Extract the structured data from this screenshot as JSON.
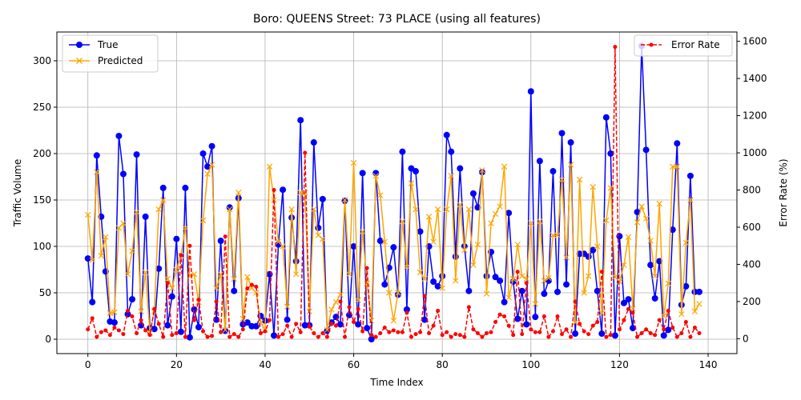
{
  "chart_data": {
    "type": "line",
    "title": "Boro: QUEENS Street: 73 PLACE (using all features)",
    "xlabel": "Time Index",
    "ylabel": "Traffic Volume",
    "y2label": "Error Rate (%)",
    "xlim": [
      -7,
      146.5
    ],
    "ylim": [
      -15.5,
      331
    ],
    "y2lim": [
      -80,
      1650
    ],
    "xticks": [
      0,
      20,
      40,
      60,
      80,
      100,
      120,
      140
    ],
    "yticks": [
      0,
      50,
      100,
      150,
      200,
      250,
      300
    ],
    "y2ticks": [
      0,
      200,
      400,
      600,
      800,
      1000,
      1200,
      1400,
      1600
    ],
    "grid": true,
    "legend_left": {
      "placement": "upper-left",
      "entries": [
        "True",
        "Predicted"
      ]
    },
    "legend_right": {
      "placement": "upper-right",
      "entries": [
        "Error Rate"
      ]
    },
    "colors": {
      "true": "#0000ff",
      "predicted": "#ffa500",
      "error": "#ff0000"
    },
    "series": [
      {
        "name": "True",
        "axis": "left",
        "values": [
          87,
          40,
          198,
          132,
          73,
          19,
          18,
          219,
          178,
          27,
          43,
          199,
          15,
          132,
          12,
          11,
          76,
          163,
          15,
          46,
          108,
          8,
          163,
          2,
          32,
          13,
          200,
          186,
          208,
          21,
          106,
          9,
          142,
          52,
          152,
          16,
          18,
          14,
          14,
          25,
          20,
          70,
          4,
          102,
          161,
          21,
          131,
          84,
          236,
          15,
          15,
          212,
          120,
          151,
          9,
          18,
          24,
          16,
          149,
          26,
          100,
          16,
          179,
          12,
          0,
          179,
          106,
          59,
          77,
          99,
          48,
          202,
          32,
          184,
          181,
          116,
          21,
          100,
          62,
          57,
          68,
          220,
          202,
          89,
          184,
          100,
          52,
          157,
          142,
          180,
          68,
          94,
          67,
          63,
          40,
          136,
          62,
          22,
          52,
          16,
          267,
          24,
          192,
          49,
          63,
          181,
          51,
          222,
          59,
          212,
          6,
          92,
          92,
          89,
          96,
          52,
          6,
          239,
          200,
          4,
          111,
          39,
          43,
          12,
          137,
          316,
          204,
          80,
          44,
          84,
          4,
          10,
          118,
          211,
          37,
          57,
          176,
          51,
          51
        ]
      },
      {
        "name": "Predicted",
        "axis": "left",
        "values": [
          134,
          85,
          180,
          90,
          110,
          28,
          29,
          120,
          125,
          70,
          95,
          137,
          30,
          72,
          7,
          30,
          140,
          150,
          65,
          55,
          75,
          90,
          120,
          68,
          70,
          40,
          128,
          178,
          188,
          55,
          70,
          10,
          140,
          65,
          158,
          22,
          67,
          55,
          50,
          18,
          10,
          186,
          150,
          105,
          100,
          35,
          140,
          70,
          158,
          158,
          30,
          140,
          112,
          108,
          10,
          32,
          40,
          48,
          150,
          70,
          190,
          42,
          116,
          60,
          20,
          176,
          155,
          105,
          50,
          20,
          50,
          127,
          78,
          168,
          140,
          72,
          65,
          132,
          105,
          140,
          55,
          140,
          176,
          63,
          145,
          96,
          140,
          80,
          102,
          182,
          49,
          125,
          135,
          143,
          186,
          45,
          65,
          102,
          68,
          65,
          125,
          38,
          127,
          63,
          66,
          112,
          112,
          172,
          88,
          188,
          18,
          172,
          50,
          68,
          164,
          100,
          28,
          128,
          163,
          67,
          62,
          80,
          110,
          33,
          126,
          143,
          130,
          106,
          68,
          146,
          25,
          60,
          186,
          186,
          27,
          104,
          150,
          30,
          38
        ]
      },
      {
        "name": "Error Rate",
        "axis": "right",
        "values": [
          50,
          110,
          10,
          35,
          45,
          20,
          60,
          45,
          25,
          150,
          120,
          30,
          100,
          45,
          20,
          160,
          80,
          10,
          300,
          20,
          30,
          450,
          10,
          500,
          100,
          210,
          40,
          10,
          15,
          200,
          35,
          550,
          10,
          25,
          10,
          50,
          270,
          290,
          280,
          30,
          40,
          100,
          800,
          10,
          25,
          70,
          10,
          80,
          35,
          1000,
          65,
          30,
          10,
          30,
          10,
          80,
          70,
          200,
          10,
          170,
          90,
          160,
          40,
          380,
          20,
          10,
          30,
          60,
          35,
          45,
          35,
          35,
          140,
          10,
          25,
          35,
          230,
          30,
          70,
          150,
          20,
          35,
          10,
          25,
          20,
          10,
          170,
          50,
          30,
          10,
          30,
          35,
          90,
          130,
          120,
          70,
          20,
          360,
          25,
          300,
          50,
          35,
          35,
          120,
          10,
          40,
          120,
          25,
          50,
          10,
          200,
          80,
          40,
          25,
          70,
          90,
          360,
          10,
          20,
          1570,
          50,
          100,
          160,
          140,
          10,
          30,
          50,
          30,
          20,
          100,
          50,
          150,
          60,
          10,
          30,
          90,
          10,
          60,
          30
        ]
      }
    ]
  }
}
